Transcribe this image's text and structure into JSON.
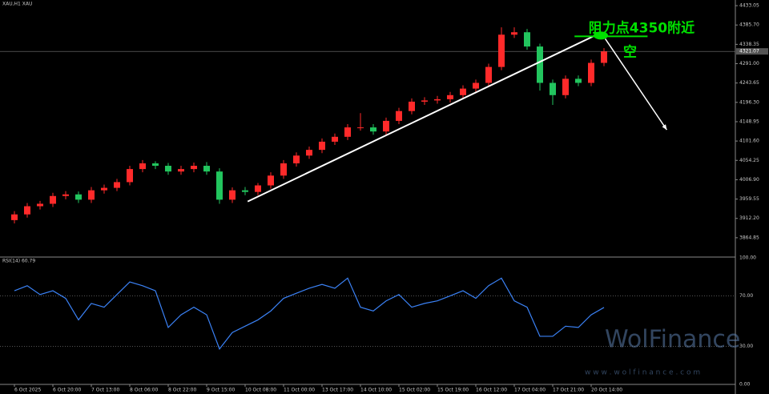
{
  "chart_data": [
    {
      "type": "candlestick",
      "title": "XAU,H1  XAU",
      "categories": [
        "6 Oct 2025",
        null,
        null,
        "6 Oct 20:00",
        null,
        null,
        "7 Oct 13:00",
        null,
        null,
        "8 Oct 06:00",
        null,
        null,
        "8 Oct 22:00",
        null,
        null,
        "9 Oct 15:00",
        null,
        null,
        "10 Oct 08:00",
        null,
        null,
        "11 Oct 00:00",
        null,
        null,
        "13 Oct 17:00",
        null,
        null,
        "14 Oct 10:00",
        null,
        null,
        "15 Oct 02:00",
        null,
        null,
        "15 Oct 19:00",
        null,
        null,
        "16 Oct 12:00",
        null,
        null,
        "17 Oct 04:00",
        null,
        null,
        "17 Oct 21:00",
        null,
        null,
        "20 Oct 14:00",
        null
      ],
      "open": [
        3908,
        3922,
        3942,
        3948,
        3967,
        3971,
        3958,
        3981,
        3987,
        4001,
        4033,
        4047,
        4041,
        4027,
        4033,
        4041,
        4027,
        3958,
        3981,
        3977,
        3993,
        4017,
        4047,
        4066,
        4080,
        4100,
        4112,
        4135,
        4135,
        4125,
        4151,
        4175,
        4198,
        4201,
        4204,
        4214,
        4230,
        4244,
        4283,
        4362,
        4368,
        4333,
        4244,
        4214,
        4254,
        4244,
        4293
      ],
      "high": [
        3930,
        3950,
        3955,
        3975,
        3979,
        3978,
        3989,
        3995,
        4009,
        4041,
        4055,
        4052,
        4048,
        4041,
        4049,
        4050,
        4035,
        3988,
        3989,
        3999,
        4025,
        4055,
        4074,
        4088,
        4108,
        4120,
        4143,
        4170,
        4143,
        4159,
        4183,
        4206,
        4209,
        4212,
        4222,
        4238,
        4252,
        4291,
        4380,
        4380,
        4376,
        4340,
        4252,
        4262,
        4262,
        4301,
        4329
      ],
      "low": [
        3900,
        3914,
        3934,
        3940,
        3959,
        3950,
        3950,
        3973,
        3979,
        3993,
        4025,
        4033,
        4019,
        4019,
        4025,
        4019,
        3948,
        3950,
        3969,
        3969,
        3985,
        4009,
        4039,
        4058,
        4072,
        4092,
        4104,
        4127,
        4117,
        4117,
        4143,
        4167,
        4190,
        4193,
        4196,
        4206,
        4222,
        4236,
        4275,
        4354,
        4325,
        4225,
        4190,
        4206,
        4236,
        4236,
        4285
      ],
      "close": [
        3922,
        3942,
        3948,
        3967,
        3971,
        3958,
        3981,
        3987,
        4001,
        4033,
        4047,
        4041,
        4027,
        4033,
        4041,
        4027,
        3958,
        3981,
        3977,
        3993,
        4017,
        4047,
        4066,
        4080,
        4100,
        4112,
        4135,
        4135,
        4125,
        4151,
        4175,
        4198,
        4201,
        4204,
        4214,
        4230,
        4244,
        4283,
        4362,
        4368,
        4333,
        4244,
        4214,
        4254,
        4244,
        4293,
        4321
      ],
      "up_color": "#ff2a2a",
      "down_color": "#22c55e",
      "ylim": [
        3819.5,
        4446.9
      ],
      "yticks": [
        {
          "value": 4433.05,
          "label": "4433.05"
        },
        {
          "value": 4385.7,
          "label": "4385.70"
        },
        {
          "value": 4338.35,
          "label": "4338.35"
        },
        {
          "value": 4291,
          "label": "4291.00"
        },
        {
          "value": 4243.65,
          "label": "4243.65"
        },
        {
          "value": 4196.3,
          "label": "4196.30"
        },
        {
          "value": 4148.95,
          "label": "4148.95"
        },
        {
          "value": 4101.6,
          "label": "4101.60"
        },
        {
          "value": 4054.25,
          "label": "4054.25"
        },
        {
          "value": 4006.9,
          "label": "4006.90"
        },
        {
          "value": 3959.55,
          "label": "3959.55"
        },
        {
          "value": 3912.2,
          "label": "3912.20"
        },
        {
          "value": 3864.85,
          "label": "3864.85"
        }
      ],
      "current_price": 4321.07,
      "trendline": {
        "x": [
          18.2,
          45.75
        ],
        "y": [
          3953.6,
          4366.8
        ],
        "color": "#ffffff"
      },
      "arrow": {
        "x": [
          46.1,
          50.9
        ],
        "y": [
          4352,
          4129
        ],
        "color": "#ffffff"
      },
      "resistance": {
        "x": [
          43.7,
          49.4
        ],
        "y": 4358,
        "color": "#00e000"
      },
      "annotations": [
        {
          "text": "阻力点4350附近",
          "x": 44.8,
          "y": 4377
        },
        {
          "text": "空",
          "x": 47.5,
          "y": 4318
        }
      ],
      "watermark": {
        "title": "WolFinance",
        "url": "w w w . w o l f i n a n c e . c o m"
      }
    },
    {
      "type": "line",
      "title": "RSI(14) 60.79",
      "color": "#3b82f6",
      "values": [
        74,
        78,
        71,
        74,
        68,
        51,
        64,
        61,
        71,
        81,
        78,
        74,
        45,
        55,
        61,
        55,
        28,
        41,
        46,
        51,
        58,
        68,
        72,
        76,
        79,
        76,
        84,
        61,
        58,
        66,
        71,
        61,
        64,
        66,
        70,
        74,
        68,
        78,
        84,
        66,
        61,
        38,
        38,
        46,
        45,
        55,
        60.79
      ],
      "ylim": [
        0,
        100
      ],
      "yticks": [
        {
          "value": 0,
          "label": "0.00"
        },
        {
          "value": 30,
          "label": "30.00"
        },
        {
          "value": 70,
          "label": "70.00"
        },
        {
          "value": 100,
          "label": "100.00"
        }
      ]
    }
  ]
}
